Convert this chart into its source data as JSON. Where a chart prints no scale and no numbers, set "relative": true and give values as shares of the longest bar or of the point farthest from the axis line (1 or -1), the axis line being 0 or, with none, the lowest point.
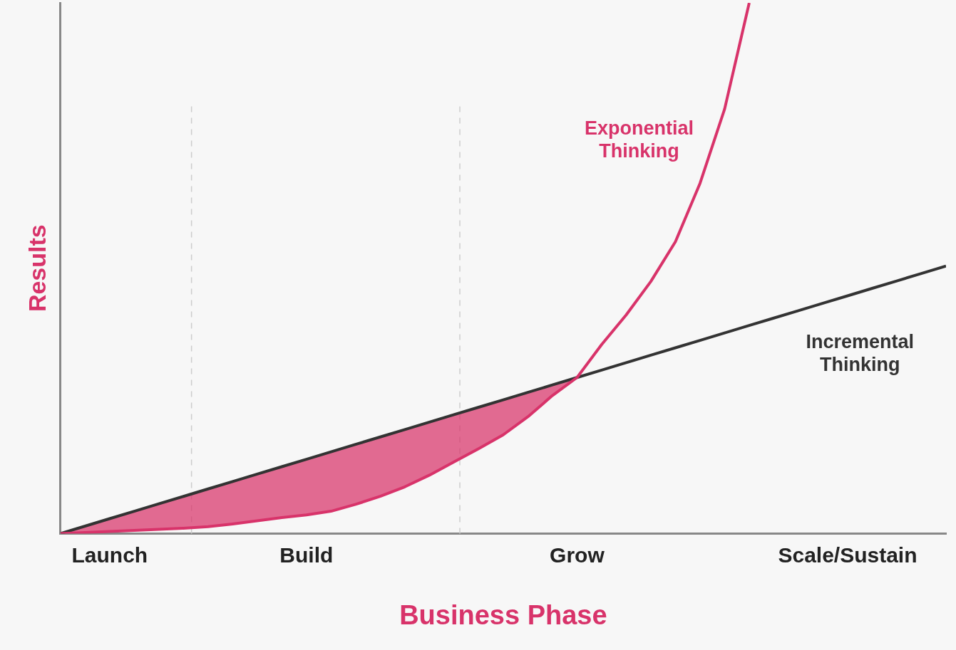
{
  "chart_data": {
    "type": "line",
    "relative": true,
    "xlabel": "Business Phase",
    "ylabel": "Results",
    "categories": [
      null,
      null,
      "Launch",
      null,
      null,
      null,
      null,
      null,
      null,
      null,
      "Build",
      null,
      null,
      null,
      null,
      null,
      null,
      null,
      null,
      null,
      null,
      "Grow",
      null,
      null,
      null,
      null,
      null,
      null,
      null,
      null,
      null,
      null,
      "Scale/Sustain",
      null,
      null,
      null,
      null
    ],
    "grid": false,
    "legend": false,
    "marker": "none",
    "line_style": "solid",
    "series": [
      {
        "name": "Exponential Thinking",
        "color": "#d8336a",
        "values": [
          0,
          0.002,
          0.004,
          0.006,
          0.008,
          0.01,
          0.013,
          0.018,
          0.024,
          0.03,
          0.035,
          0.042,
          0.055,
          0.07,
          0.088,
          0.11,
          0.135,
          0.16,
          0.186,
          0.22,
          0.26,
          0.294,
          0.356,
          0.412,
          0.475,
          0.55,
          0.66,
          0.8,
          1,
          null,
          null,
          null,
          null,
          null,
          null,
          null,
          null
        ],
        "lower": [
          0,
          0.002,
          0.004,
          0.006,
          0.008,
          0.01,
          0.013,
          0.018,
          0.024,
          0.03,
          0.035,
          0.042,
          0.055,
          0.07,
          0.088,
          0.11,
          0.135,
          0.16,
          0.186,
          0.22,
          0.26,
          0.294,
          null,
          null,
          null,
          null,
          null,
          null,
          null,
          null,
          null,
          null,
          null,
          null,
          null,
          null,
          null
        ],
        "upper": [
          0,
          0.014,
          0.028,
          0.042,
          0.056,
          0.07,
          0.084,
          0.098,
          0.112,
          0.126,
          0.14,
          0.154,
          0.168,
          0.182,
          0.196,
          0.21,
          0.224,
          0.238,
          0.252,
          0.266,
          0.28,
          0.294,
          null,
          null,
          null,
          null,
          null,
          null,
          null,
          null,
          null,
          null,
          null,
          null,
          null,
          null,
          null
        ]
      },
      {
        "name": "Incremental Thinking",
        "color": "#333333",
        "values": [
          0,
          0.014,
          0.028,
          0.042,
          0.056,
          0.07,
          0.084,
          0.098,
          0.112,
          0.126,
          0.14,
          0.154,
          0.168,
          0.182,
          0.196,
          0.21,
          0.224,
          0.238,
          0.252,
          0.266,
          0.28,
          0.294,
          0.308,
          0.322,
          0.336,
          0.35,
          0.364,
          0.378,
          0.392,
          0.406,
          0.42,
          0.434,
          0.448,
          0.462,
          0.476,
          0.49,
          0.504
        ]
      }
    ]
  }
}
